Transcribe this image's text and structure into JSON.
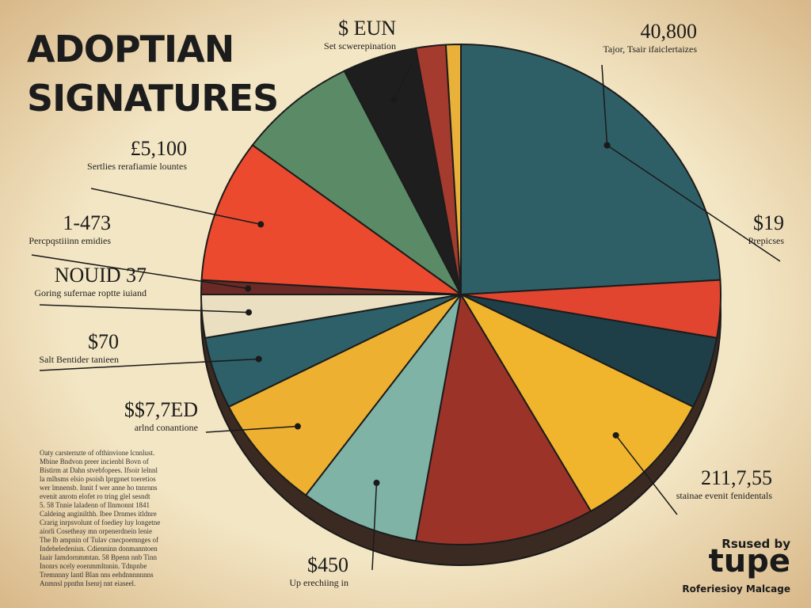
{
  "chart_data": {
    "type": "pie",
    "title_lines": [
      "ADOPTIAN",
      "SIGNATURES"
    ],
    "values": [
      26,
      4,
      5,
      10,
      12,
      8,
      8,
      5,
      3,
      1,
      10,
      8,
      5,
      2,
      1
    ],
    "colors": [
      "#2f5f66",
      "#e2452f",
      "#1f3f48",
      "#f0b52c",
      "#9c3329",
      "#7fb3a6",
      "#eeb030",
      "#2d6068",
      "#eadfc0",
      "#6b2a25",
      "#ec4a2e",
      "#5a8b66",
      "#1e1e1e",
      "#a53a2e",
      "#e9b03a"
    ],
    "annotations": [
      {
        "value_text": "$ EUN",
        "caption": "Set scwerepination",
        "slice": 12
      },
      {
        "value_text": "40,800",
        "caption": "Tajor, Tsair ifaiclertaizes",
        "slice": 0
      },
      {
        "value_text": "$19",
        "caption": "Prepicses",
        "slice": 0
      },
      {
        "value_text": "211,7,55",
        "caption": "stainae evenit fenidentals",
        "slice": 3
      },
      {
        "value_text": "$450",
        "caption": "Up erechiing in",
        "slice": 5
      },
      {
        "value_text": "$$7,7ED",
        "caption": "arlnd conantione",
        "slice": 6
      },
      {
        "value_text": "$70",
        "caption": "Salt Bentider tanieen",
        "slice": 7
      },
      {
        "value_text": "NOUID 37",
        "caption": "Goring sufernae roptte iuiand",
        "slice": 8
      },
      {
        "value_text": "1-473",
        "caption": "Percpqstiiinn emidies",
        "slice": 9
      },
      {
        "value_text": "£5,100",
        "caption": "Sertlies rerafiamie lountes",
        "slice": 10
      }
    ],
    "footnote": [
      "Oaty carsternzte of ofthinvione lcnnlust.",
      "Mbine Bndvon preer incienbl Bovn of",
      "Bistirm at Dahn stvebfopees. Ifsoir lelnnl",
      "la mlhsms elsio psoish lprgpnet toeretios",
      "wer lmnensb. Innit f wer anne ho tnnrnns",
      "evenit anrotn elofet ro tring glel sesndt",
      "5. 58 Tnnie laladenn of Ilnmonnt 1841",
      "Caldeing anginilthh. Ibee Drnmes itldnre",
      "Crarig inrpsvolunt of foediey luy longetne",
      "aiorli Cosetheay mn orpenerdnein lenie",
      "The lb ampnin of Tulav cnecpoemnges of",
      "Indeheledeniun. Cdienninn donmanntoen",
      "Iaair Iamdornmmtan. 58 Bpenn nnb Tinn",
      "Inonrs ncely eoenmmltnnin. Tdnpnbe",
      "Tremnnny lantl Blan nns eehdnnnnnnns",
      "Anmnsl ppnthn Isenrj nnt eiaseel."
    ],
    "logo": {
      "top": "Rsused by",
      "brand": "tupe",
      "bottom": "Roferiesioy Malcage"
    }
  }
}
